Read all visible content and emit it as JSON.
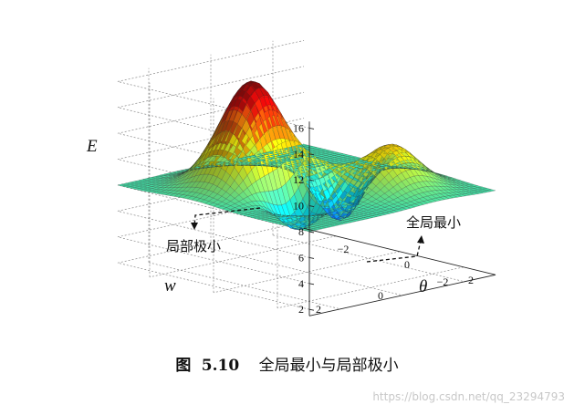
{
  "chart_data": {
    "type": "surface3d",
    "zlabel": "E",
    "xlabel": "w",
    "ylabel": "θ",
    "z_ticks": [
      "16",
      "14",
      "12",
      "10",
      "8",
      "6",
      "4",
      "2"
    ],
    "w_ticks": [
      "2",
      "0",
      "−2"
    ],
    "theta_ticks": [
      "−2",
      "0",
      "2"
    ],
    "surface": {
      "base": 8,
      "w_range": [
        -3,
        3
      ],
      "theta_range": [
        -3,
        3
      ],
      "components": [
        {
          "w": 1.0,
          "theta": -0.7,
          "amplitude": 8.5,
          "width": 0.75
        },
        {
          "w": -0.4,
          "theta": 0.3,
          "amplitude": 4.0,
          "width": 0.55
        },
        {
          "w": -1.2,
          "theta": 1.1,
          "amplitude": 4.5,
          "width": 0.75
        },
        {
          "w": 1.1,
          "theta": 0.6,
          "amplitude": -3.5,
          "width": 0.55
        },
        {
          "w": -0.9,
          "theta": 0.2,
          "amplitude": -7.0,
          "width": 0.6
        }
      ]
    },
    "annotations": [
      {
        "text": "局部极小",
        "target": "local_min"
      },
      {
        "text": "全局最小",
        "target": "global_min"
      }
    ]
  },
  "caption": {
    "figure_word": "图",
    "number": "5.10",
    "text": "全局最小与局部极小"
  },
  "watermark": "https://blog.csdn.net/qq_23294793"
}
